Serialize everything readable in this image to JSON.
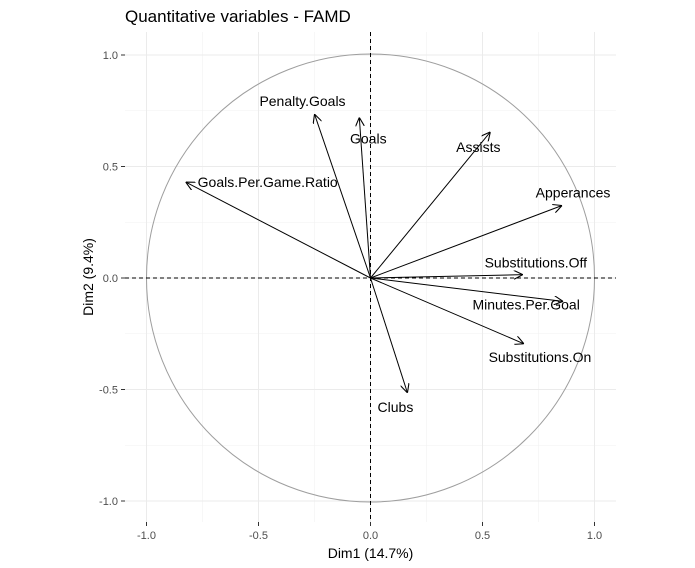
{
  "chart_data": {
    "type": "correlation-circle",
    "title": "Quantitative variables - FAMD",
    "xlabel": "Dim1 (14.7%)",
    "ylabel": "Dim2 (9.4%)",
    "xlim": [
      -1.1,
      1.1
    ],
    "ylim": [
      -1.1,
      1.1
    ],
    "xticks": [
      {
        "value": -1.0,
        "label": "-1.0"
      },
      {
        "value": -0.5,
        "label": "-0.5"
      },
      {
        "value": 0.0,
        "label": "0.0"
      },
      {
        "value": 0.5,
        "label": "0.5"
      },
      {
        "value": 1.0,
        "label": "1.0"
      }
    ],
    "yticks": [
      {
        "value": -1.0,
        "label": "-1.0"
      },
      {
        "value": -0.5,
        "label": "-0.5"
      },
      {
        "value": 0.0,
        "label": "0.0"
      },
      {
        "value": 0.5,
        "label": "0.5"
      },
      {
        "value": 1.0,
        "label": "1.0"
      }
    ],
    "grid": true,
    "circle_radius": 1.0,
    "variables": [
      {
        "name": "Penalty.Goals",
        "x": -0.25,
        "y": 0.735
      },
      {
        "name": "Goals",
        "x": -0.05,
        "y": 0.72
      },
      {
        "name": "Assists",
        "x": 0.535,
        "y": 0.655
      },
      {
        "name": "Goals.Per.Game.Ratio",
        "x": -0.825,
        "y": 0.43
      },
      {
        "name": "Apperances",
        "x": 0.855,
        "y": 0.325
      },
      {
        "name": "Substitutions.Off",
        "x": 0.68,
        "y": 0.015
      },
      {
        "name": "Minutes.Per.Goal",
        "x": 0.86,
        "y": -0.105
      },
      {
        "name": "Substitutions.On",
        "x": 0.685,
        "y": -0.295
      },
      {
        "name": "Clubs",
        "x": 0.165,
        "y": -0.515
      }
    ]
  }
}
